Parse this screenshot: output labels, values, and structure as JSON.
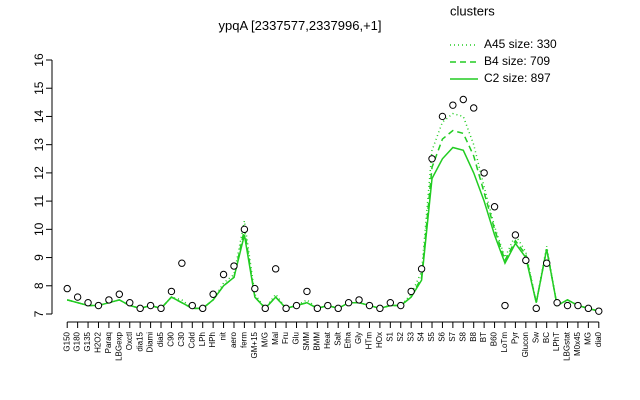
{
  "chart_data": {
    "type": "line",
    "title": "ypqA [2337577,2337996,+1]",
    "categories": [
      "G150",
      "G180",
      "G135",
      "H2O2",
      "Paraq",
      "LBGexp",
      "Oxctl",
      "dia15",
      "Diami",
      "dia5",
      "C90",
      "C30",
      "Cold",
      "LPh",
      "HPh",
      "nit",
      "aero",
      "ferm",
      "GM+15",
      "M/G",
      "Mal",
      "Fru",
      "Glu",
      "SMM",
      "BMM",
      "Heat",
      "Salt",
      "Etha",
      "Gly",
      "HTm",
      "HOx",
      "S1",
      "S2",
      "S3",
      "S4",
      "S5",
      "S6",
      "S7",
      "S8",
      "B8",
      "BT",
      "B60",
      "LoTm",
      "Pyr",
      "Glucon",
      "Sw",
      "BC",
      "LPhT",
      "LBGstat",
      "M0x45",
      "MG",
      "dia0"
    ],
    "ylim": [
      7,
      16
    ],
    "yticks": [
      7,
      8,
      9,
      10,
      11,
      12,
      13,
      14,
      15,
      16
    ],
    "legend_title": "clusters",
    "legend": "top-right",
    "series": [
      {
        "name": "A45 size: 330",
        "color": "#22cc22",
        "linestyle": "dotted",
        "values": [
          7.5,
          7.4,
          7.3,
          7.3,
          7.4,
          7.5,
          7.3,
          7.2,
          7.3,
          7.2,
          7.6,
          7.5,
          7.2,
          7.2,
          7.5,
          8.1,
          8.4,
          10.3,
          7.7,
          7.2,
          7.7,
          7.2,
          7.3,
          7.5,
          7.2,
          7.3,
          7.2,
          7.4,
          7.4,
          7.3,
          7.2,
          7.3,
          7.3,
          7.7,
          8.5,
          12.8,
          13.8,
          14.1,
          14.0,
          13.0,
          11.5,
          10.1,
          9.0,
          9.8,
          9.2,
          7.4,
          9.4,
          7.3,
          7.5,
          7.3,
          7.2,
          7.1
        ]
      },
      {
        "name": "B4 size: 709",
        "color": "#22cc22",
        "linestyle": "dashed",
        "values": [
          7.5,
          7.4,
          7.3,
          7.3,
          7.4,
          7.5,
          7.3,
          7.2,
          7.3,
          7.2,
          7.6,
          7.4,
          7.2,
          7.2,
          7.5,
          8.0,
          8.3,
          10.0,
          7.6,
          7.2,
          7.6,
          7.2,
          7.3,
          7.4,
          7.2,
          7.3,
          7.2,
          7.4,
          7.4,
          7.3,
          7.2,
          7.3,
          7.3,
          7.6,
          8.3,
          12.2,
          13.2,
          13.5,
          13.4,
          12.6,
          11.3,
          10.0,
          8.9,
          9.6,
          9.1,
          7.4,
          9.3,
          7.3,
          7.5,
          7.3,
          7.2,
          7.1
        ]
      },
      {
        "name": "C2 size: 897",
        "color": "#22cc22",
        "linestyle": "solid",
        "values": [
          7.5,
          7.4,
          7.3,
          7.3,
          7.4,
          7.5,
          7.3,
          7.2,
          7.3,
          7.2,
          7.6,
          7.4,
          7.2,
          7.2,
          7.5,
          8.0,
          8.3,
          9.8,
          7.6,
          7.2,
          7.6,
          7.2,
          7.3,
          7.4,
          7.2,
          7.3,
          7.2,
          7.4,
          7.4,
          7.3,
          7.2,
          7.3,
          7.3,
          7.6,
          8.2,
          11.8,
          12.5,
          12.9,
          12.8,
          12.0,
          11.0,
          9.8,
          8.8,
          9.5,
          9.0,
          7.4,
          9.3,
          7.3,
          7.5,
          7.3,
          7.2,
          7.1
        ]
      }
    ],
    "points": {
      "color": "#000000",
      "values": [
        7.9,
        7.6,
        7.4,
        7.3,
        7.5,
        7.7,
        7.4,
        7.2,
        7.3,
        7.2,
        7.8,
        8.8,
        7.3,
        7.2,
        7.7,
        8.4,
        8.7,
        10.0,
        7.9,
        7.2,
        8.6,
        7.2,
        7.3,
        7.8,
        7.2,
        7.3,
        7.2,
        7.4,
        7.5,
        7.3,
        7.2,
        7.4,
        7.3,
        7.8,
        8.6,
        12.5,
        14.0,
        14.4,
        14.6,
        14.3,
        12.0,
        10.8,
        7.3,
        9.8,
        8.9,
        7.2,
        8.8,
        7.4,
        7.3,
        7.3,
        7.2,
        7.1
      ]
    }
  }
}
